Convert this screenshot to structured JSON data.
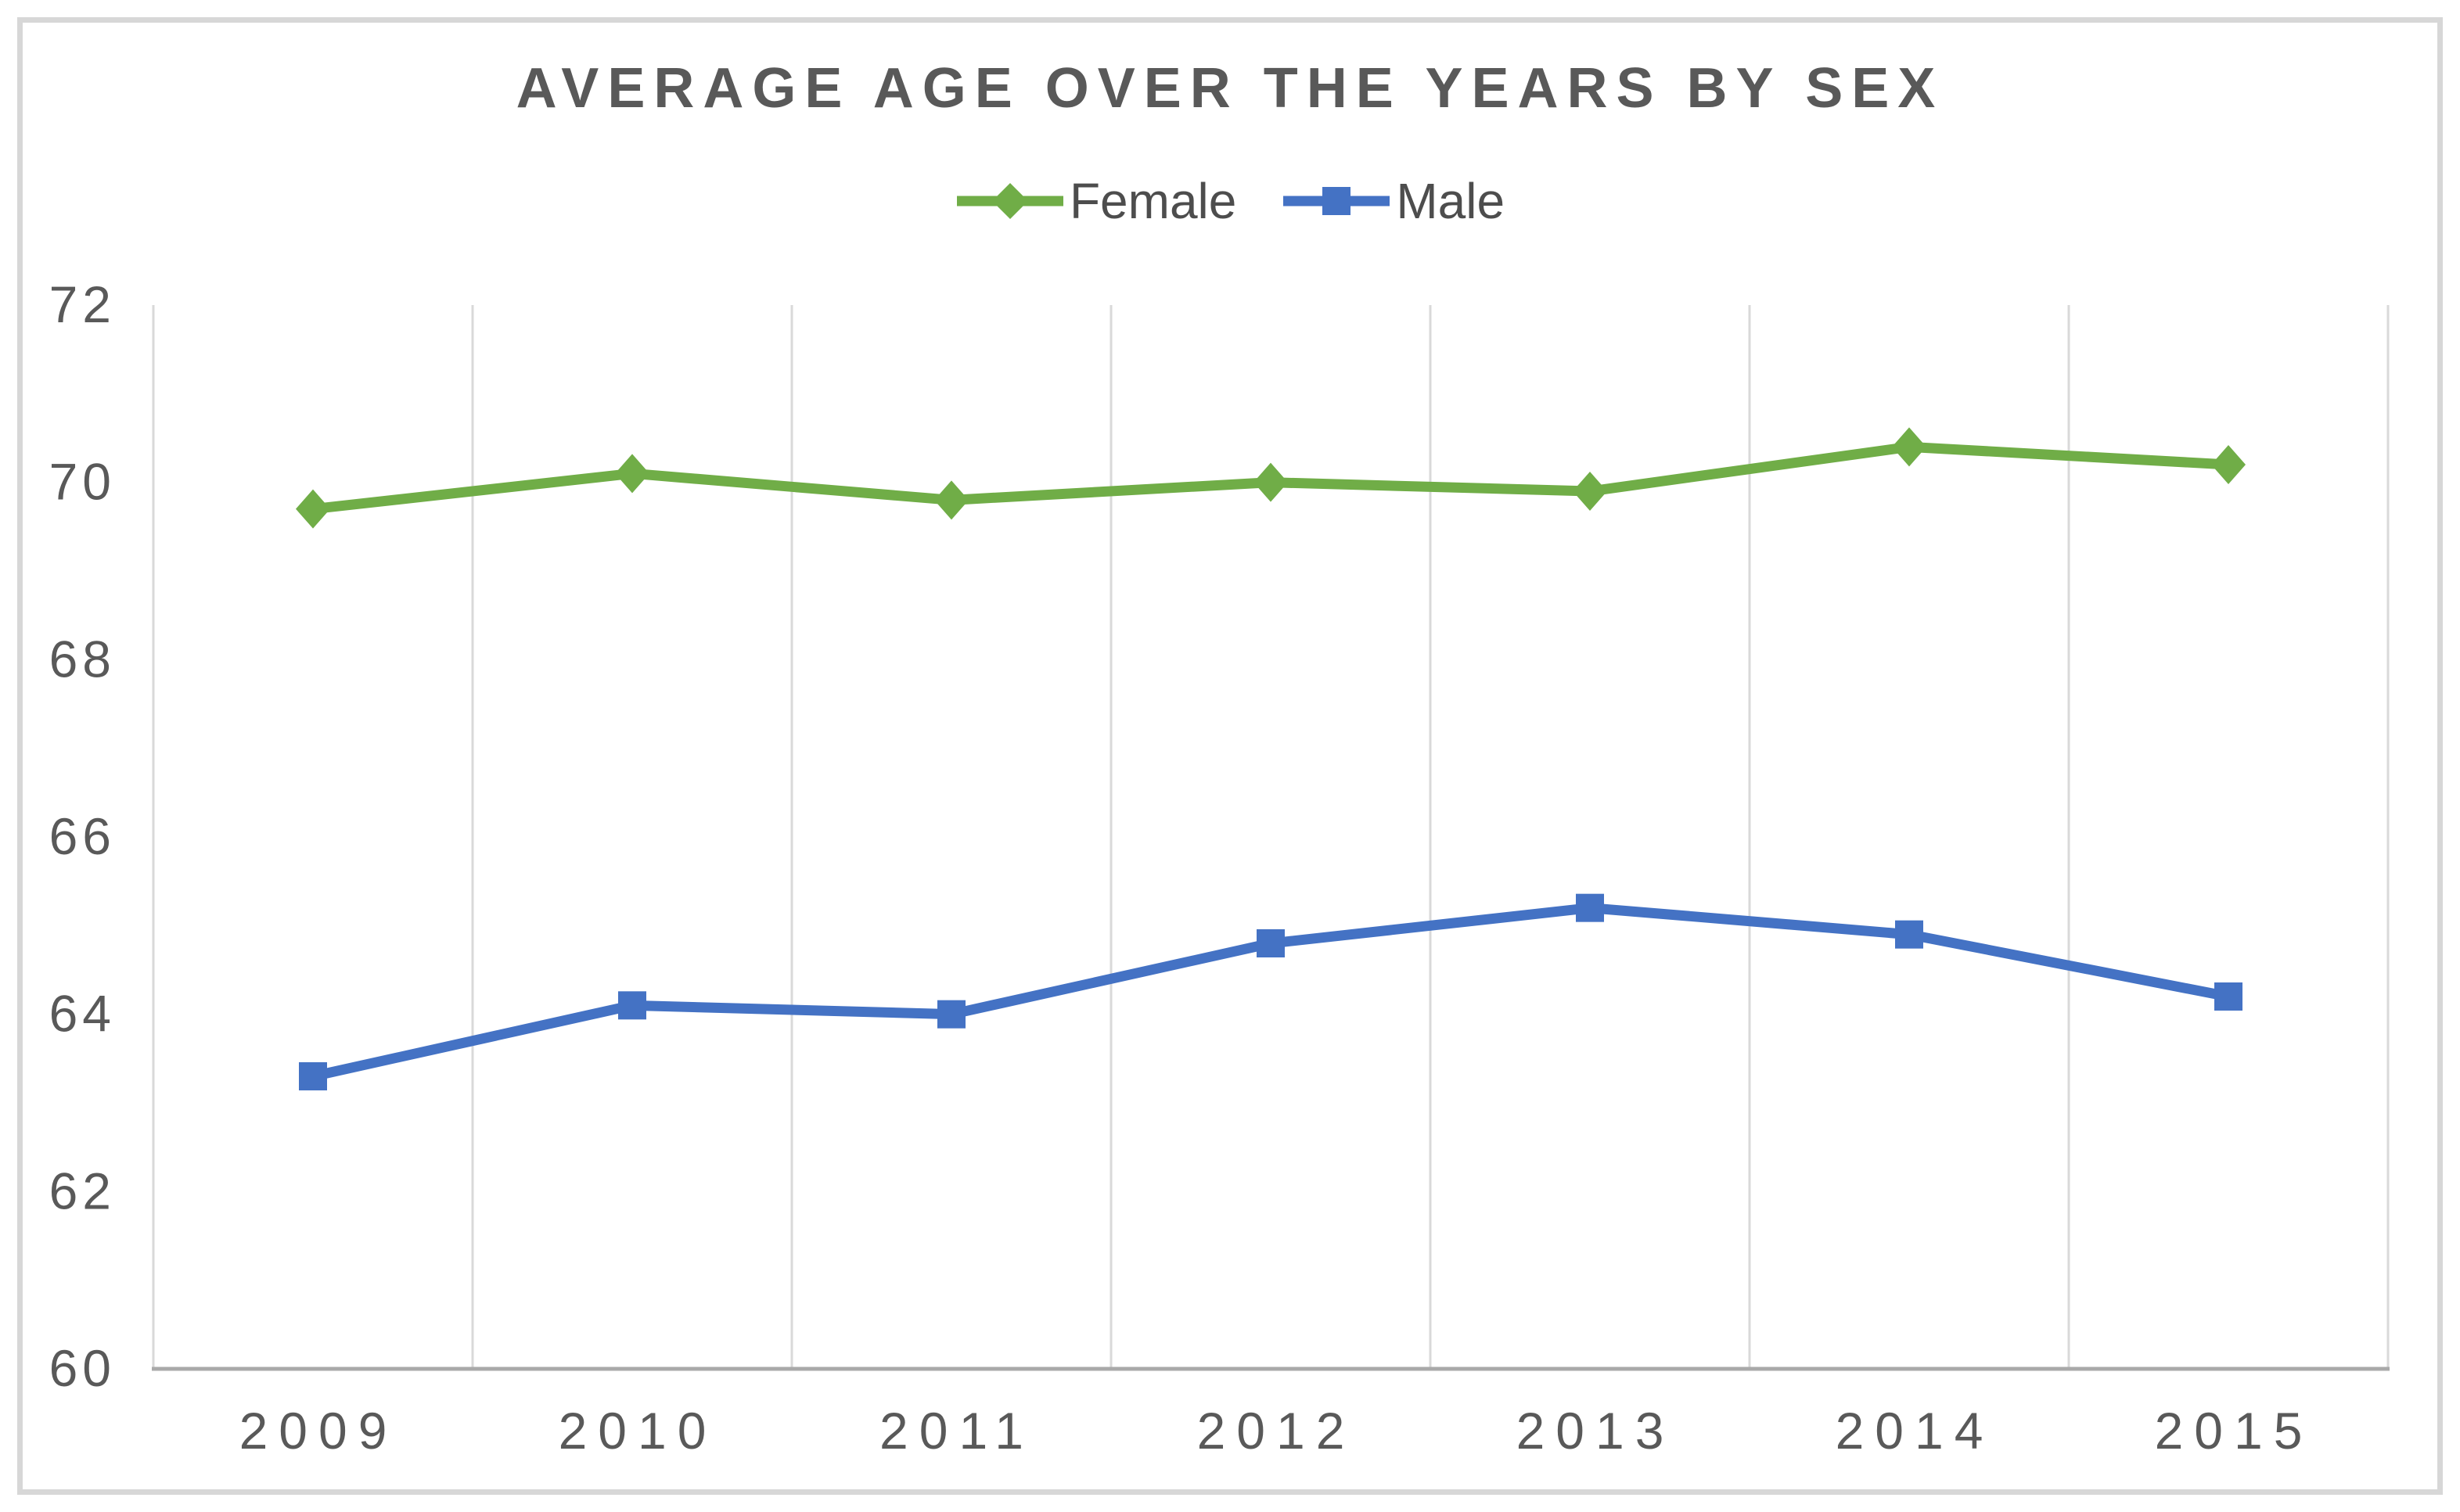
{
  "chart_data": {
    "type": "line",
    "title": "AVERAGE AGE OVER THE YEARS BY SEX",
    "categories": [
      "2009",
      "2010",
      "2011",
      "2012",
      "2013",
      "2014",
      "2015"
    ],
    "series": [
      {
        "name": "Female",
        "color": "#70AD47",
        "marker": "diamond",
        "values": [
          69.7,
          70.1,
          69.8,
          70.0,
          69.9,
          70.4,
          70.2
        ]
      },
      {
        "name": "Male",
        "color": "#4472C4",
        "marker": "square",
        "values": [
          63.3,
          64.1,
          64.0,
          64.8,
          65.2,
          64.9,
          64.2
        ]
      }
    ],
    "xlabel": "",
    "ylabel": "",
    "ylim": [
      60,
      72
    ],
    "yticks": [
      60,
      62,
      64,
      66,
      68,
      70,
      72
    ],
    "grid": "vertical",
    "legend_position": "top",
    "colors": {
      "text": "#595959",
      "gridline": "#d9d9d9",
      "axis_line": "#a9a9a9",
      "frame_border": "#d7d7d7",
      "background": "#ffffff"
    }
  }
}
